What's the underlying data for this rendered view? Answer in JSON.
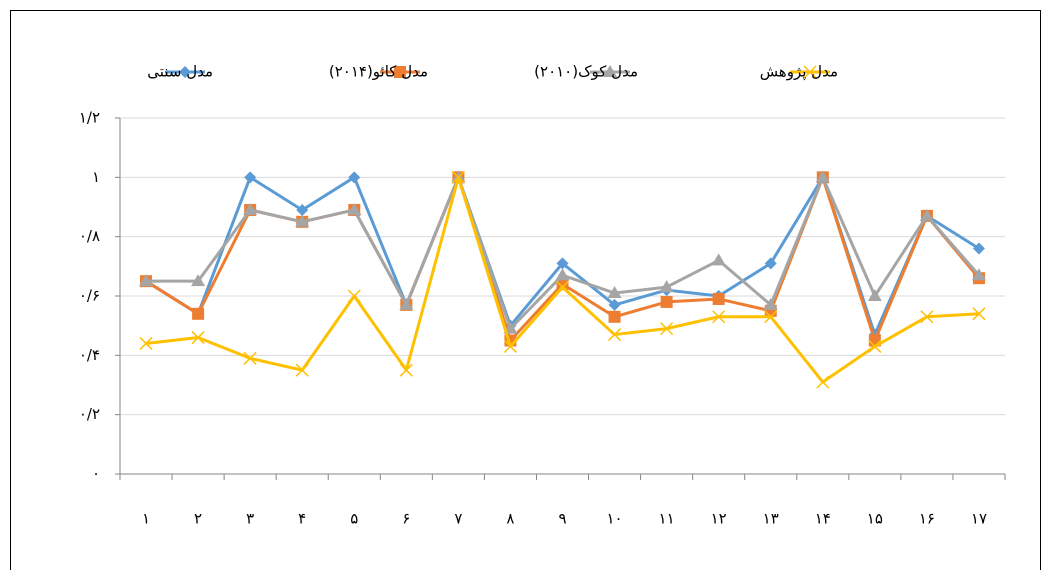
{
  "chart_data": {
    "type": "line",
    "categories": [
      "۱",
      "۲",
      "۳",
      "۴",
      "۵",
      "۶",
      "۷",
      "۸",
      "۹",
      "۱۰",
      "۱۱",
      "۱۲",
      "۱۳",
      "۱۴",
      "۱۵",
      "۱۶",
      "۱۷"
    ],
    "series": [
      {
        "name": "مدل سنتی",
        "color": "#5b9bd5",
        "marker": "diamond",
        "values": [
          0.65,
          0.54,
          1.0,
          0.89,
          1.0,
          0.57,
          1.0,
          0.5,
          0.71,
          0.57,
          0.62,
          0.6,
          0.71,
          1.0,
          0.47,
          0.87,
          0.76
        ]
      },
      {
        "name": "مدل کائو(۲۰۱۴)",
        "color": "#ed7d31",
        "marker": "square",
        "values": [
          0.65,
          0.54,
          0.89,
          0.85,
          0.89,
          0.57,
          1.0,
          0.45,
          0.64,
          0.53,
          0.58,
          0.59,
          0.55,
          1.0,
          0.45,
          0.87,
          0.66
        ]
      },
      {
        "name": "مدل کوک(۲۰۱۰)",
        "color": "#a5a5a5",
        "marker": "triangle",
        "values": [
          0.65,
          0.65,
          0.89,
          0.85,
          0.89,
          0.57,
          1.0,
          0.49,
          0.67,
          0.61,
          0.63,
          0.72,
          0.57,
          1.0,
          0.6,
          0.87,
          0.67
        ]
      },
      {
        "name": "مدل پژوهش",
        "color": "#ffc000",
        "marker": "x",
        "values": [
          0.44,
          0.46,
          0.39,
          0.35,
          0.6,
          0.35,
          1.0,
          0.43,
          0.63,
          0.47,
          0.49,
          0.53,
          0.53,
          0.31,
          0.43,
          0.53,
          0.54
        ]
      }
    ],
    "ylim": [
      0,
      1.2
    ],
    "yticks": [
      {
        "value": 0,
        "label": "۰"
      },
      {
        "value": 0.2,
        "label": "۰/۲"
      },
      {
        "value": 0.4,
        "label": "۰/۴"
      },
      {
        "value": 0.6,
        "label": "۰/۶"
      },
      {
        "value": 0.8,
        "label": "۰/۸"
      },
      {
        "value": 1,
        "label": "۱"
      },
      {
        "value": 1.2,
        "label": "۱/۲"
      }
    ],
    "grid": true,
    "legend": "top"
  }
}
